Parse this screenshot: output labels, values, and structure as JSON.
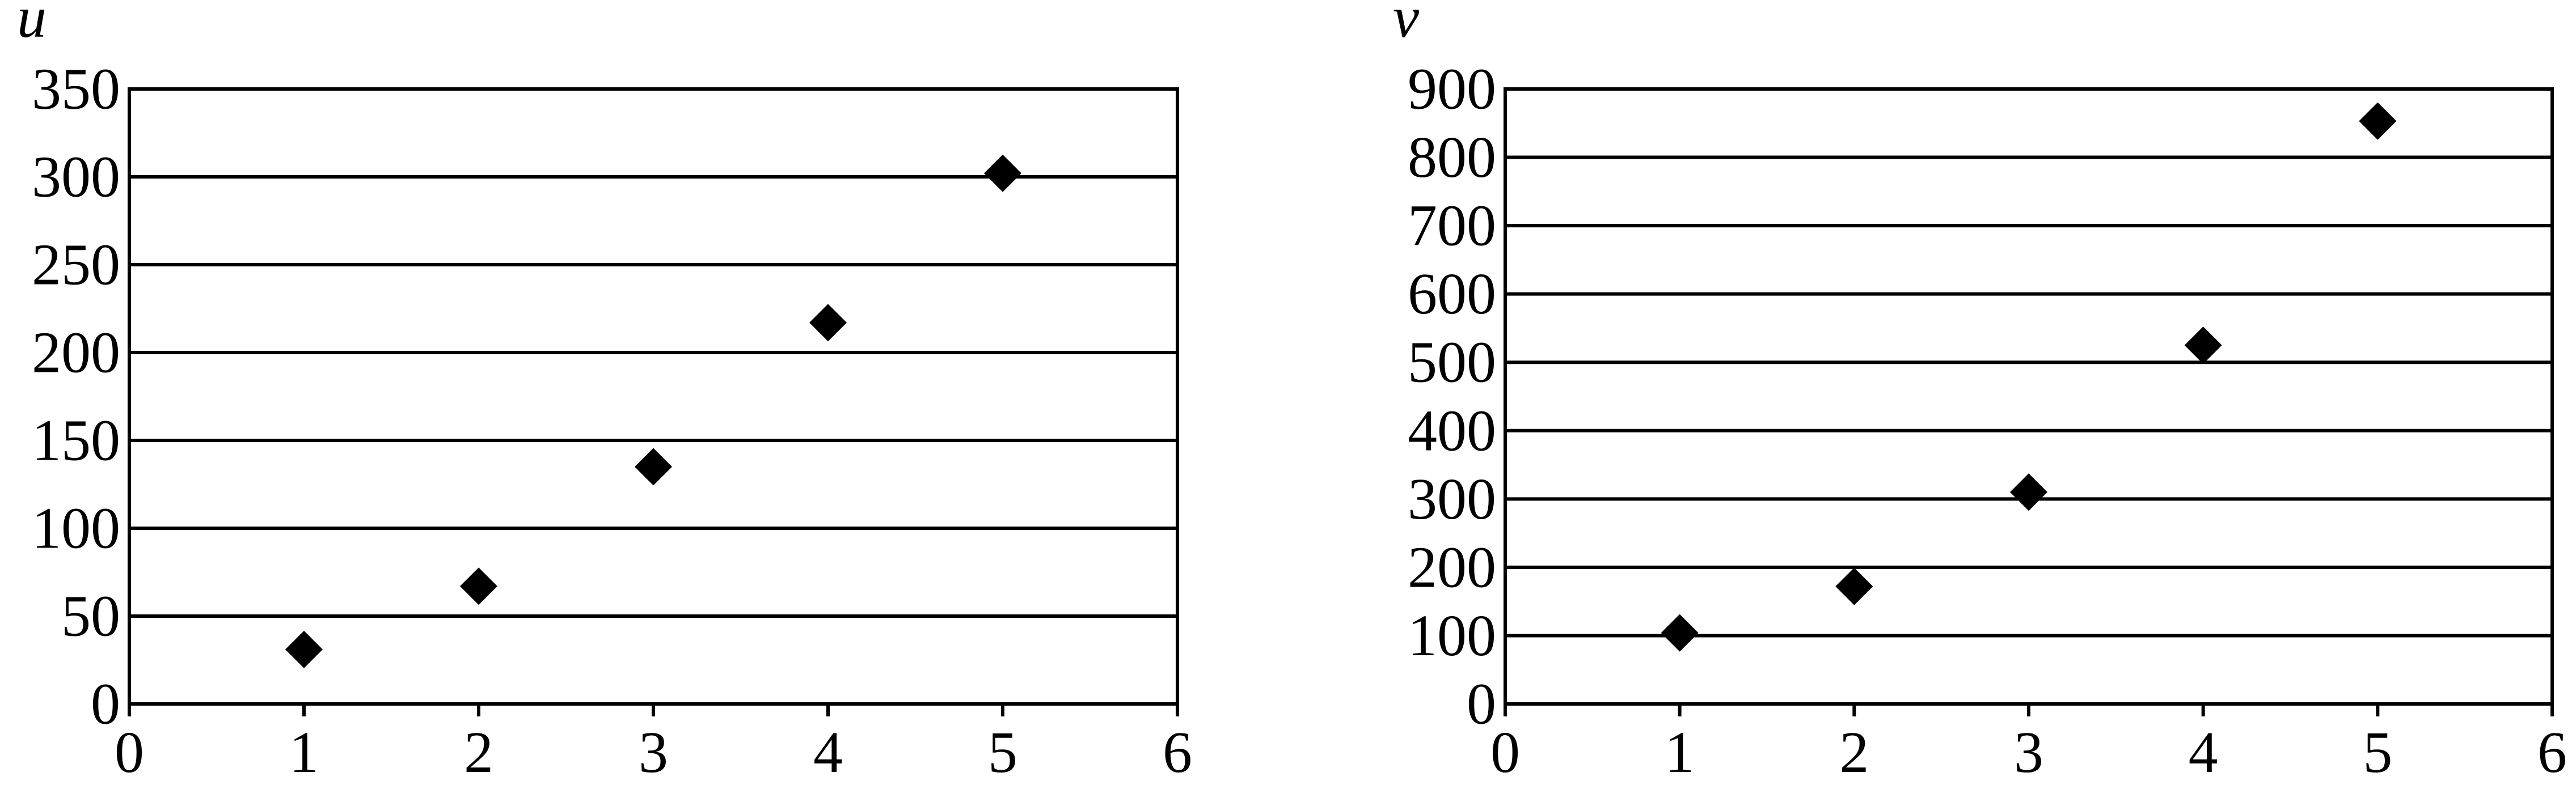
{
  "chart_data": [
    {
      "type": "scatter",
      "title": "",
      "xlabel": "",
      "ylabel": "u",
      "xlim": [
        0,
        6
      ],
      "ylim": [
        0,
        350
      ],
      "x_ticks": [
        "0",
        "1",
        "2",
        "3",
        "4",
        "5",
        "6"
      ],
      "y_ticks": [
        "0",
        "50",
        "100",
        "150",
        "200",
        "250",
        "300",
        "350"
      ],
      "grid": "horizontal",
      "marker": "diamond",
      "marker_color": "#000000",
      "points": [
        {
          "x": 1,
          "y": 31
        },
        {
          "x": 2,
          "y": 67
        },
        {
          "x": 3,
          "y": 135
        },
        {
          "x": 4,
          "y": 217
        },
        {
          "x": 5,
          "y": 302
        }
      ]
    },
    {
      "type": "scatter",
      "title": "",
      "xlabel": "",
      "ylabel": "v",
      "xlim": [
        0,
        6
      ],
      "ylim": [
        0,
        900
      ],
      "x_ticks": [
        "0",
        "1",
        "2",
        "3",
        "4",
        "5",
        "6"
      ],
      "y_ticks": [
        "0",
        "100",
        "200",
        "300",
        "400",
        "500",
        "600",
        "700",
        "800",
        "900"
      ],
      "grid": "horizontal",
      "marker": "diamond",
      "marker_color": "#000000",
      "points": [
        {
          "x": 1,
          "y": 104
        },
        {
          "x": 2,
          "y": 172
        },
        {
          "x": 3,
          "y": 310
        },
        {
          "x": 4,
          "y": 525
        },
        {
          "x": 5,
          "y": 853
        }
      ]
    }
  ]
}
